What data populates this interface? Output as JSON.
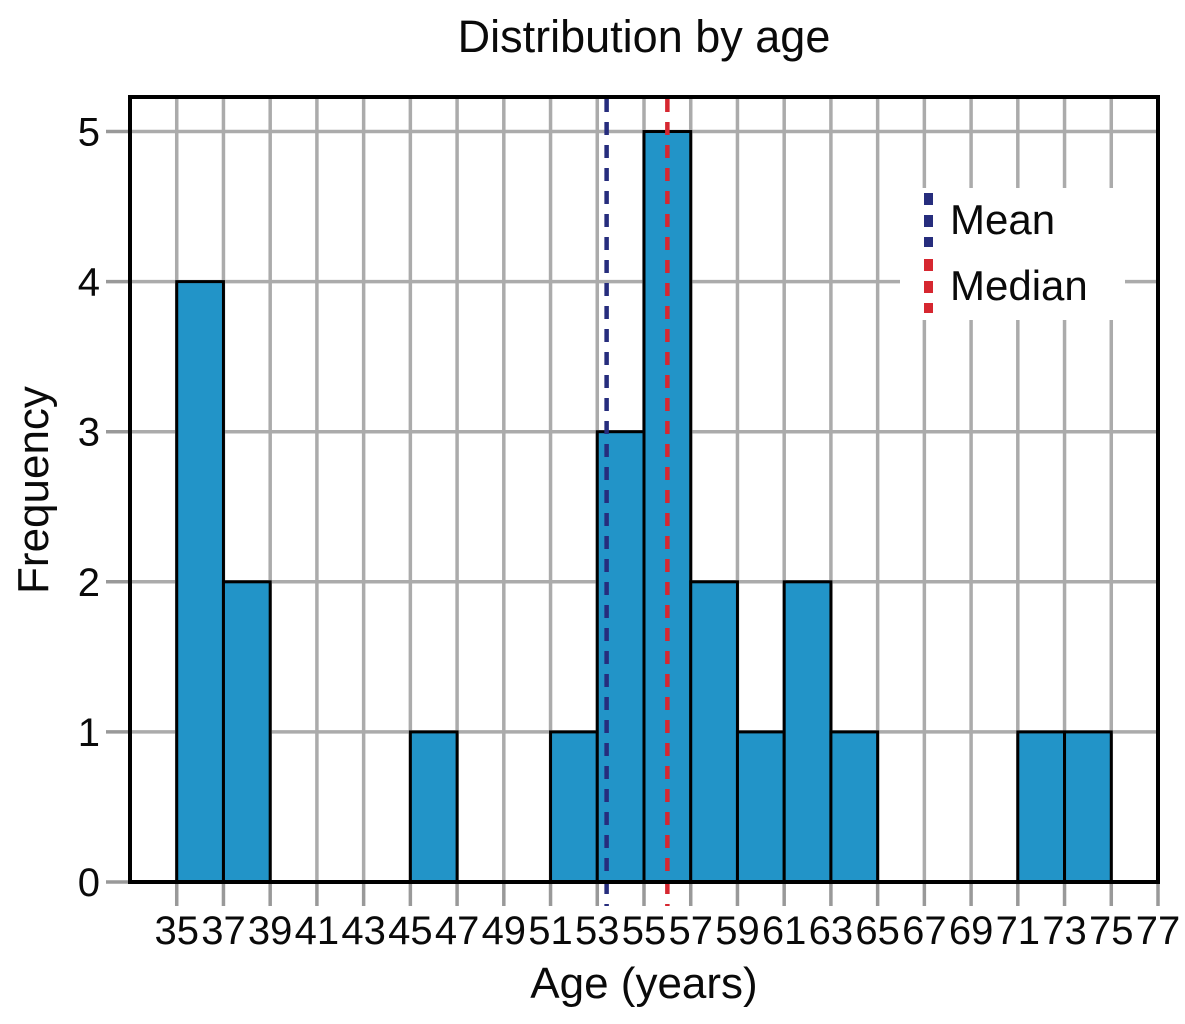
{
  "chart_data": {
    "type": "bar",
    "subtype": "histogram",
    "title": "Distribution by age",
    "xlabel": "Age (years)",
    "ylabel": "Frequency",
    "bin_width": 2,
    "bin_edges": [
      35,
      37,
      39,
      41,
      43,
      45,
      47,
      49,
      51,
      53,
      55,
      57,
      59,
      61,
      63,
      65,
      67,
      69,
      71,
      73,
      75,
      77
    ],
    "counts": [
      4,
      2,
      0,
      0,
      0,
      1,
      0,
      0,
      1,
      3,
      5,
      2,
      1,
      2,
      1,
      0,
      0,
      0,
      1,
      1,
      0
    ],
    "x_ticks": [
      35,
      37,
      39,
      41,
      43,
      45,
      47,
      49,
      51,
      53,
      55,
      57,
      59,
      61,
      63,
      65,
      67,
      69,
      71,
      73,
      75,
      77
    ],
    "y_ticks": [
      0,
      1,
      2,
      3,
      4,
      5
    ],
    "xlim": [
      33,
      77
    ],
    "ylim": [
      0,
      5.23
    ],
    "grid": true,
    "mean": 53.4,
    "median": 56,
    "legend": {
      "position": "upper-right",
      "entries": [
        {
          "label": "Mean",
          "color": "#262D7D",
          "style": "dashed-vertical-line"
        },
        {
          "label": "Median",
          "color": "#D62730",
          "style": "dashed-vertical-line"
        }
      ]
    },
    "colors": {
      "bar_fill": "#2294C8",
      "bar_edge": "#000000",
      "grid": "#ABABAB",
      "tick": "#999999",
      "spine": "#000000",
      "text": "#0A0A0A",
      "mean_line": "#262D7D",
      "median_line": "#D62730",
      "background": "#FFFFFF"
    }
  }
}
